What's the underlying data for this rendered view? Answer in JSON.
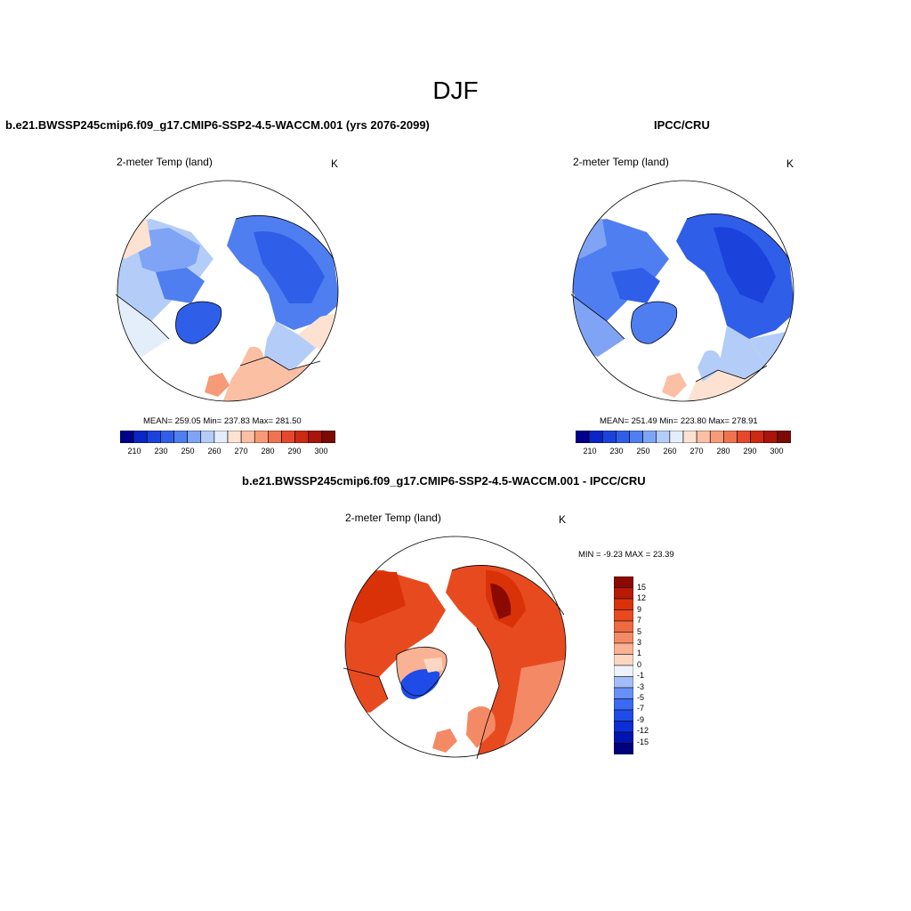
{
  "figure": {
    "title": "DJF"
  },
  "panels": {
    "model": {
      "title": "b.e21.BWSSP245cmip6.f09_g17.CMIP6-SSP2-4.5-WACCM.001 (yrs 2076-2099)",
      "variable": "2-meter Temp (land)",
      "unit": "K",
      "stats": "MEAN= 259.05  Min= 237.83  Max= 281.50"
    },
    "obs": {
      "title": "IPCC/CRU",
      "variable": "2-meter Temp (land)",
      "unit": "K",
      "stats": "MEAN= 251.49  Min= 223.80  Max= 278.91"
    },
    "diff": {
      "title": "b.e21.BWSSP245cmip6.f09_g17.CMIP6-SSP2-4.5-WACCM.001 - IPCC/CRU",
      "variable": "2-meter Temp (land)",
      "unit": "K",
      "stats": "MIN =  -9.23 MAX =  23.39"
    }
  },
  "colorbars": {
    "abs": {
      "colors": [
        "#00008b",
        "#0a26c4",
        "#1b43dc",
        "#2f5ee8",
        "#4f7ef0",
        "#7fa4f5",
        "#b4cdf8",
        "#e4eefb",
        "#fde2d2",
        "#fbbfa4",
        "#f69a77",
        "#f07350",
        "#e5482b",
        "#cc2a12",
        "#a8150a",
        "#7a0a05"
      ],
      "labels": [
        "210",
        "230",
        "250",
        "260",
        "270",
        "280",
        "290",
        "300"
      ]
    },
    "diff": {
      "colors": [
        "#00007a",
        "#0015b0",
        "#0a2fd6",
        "#1f4ce8",
        "#3b6af0",
        "#6990f4",
        "#a3bdf8",
        "#eef2fb",
        "#fcd8c2",
        "#f9b293",
        "#f48a65",
        "#ee6a40",
        "#e84a20",
        "#d93208",
        "#b81a04",
        "#8a0a02"
      ],
      "labels": [
        "15",
        "12",
        "9",
        "7",
        "5",
        "3",
        "1",
        "0",
        "-1",
        "-3",
        "-5",
        "-7",
        "-9",
        "-12",
        "-15"
      ]
    }
  },
  "map_colors": {
    "ocean": "#ffffff",
    "coast": "#000000"
  }
}
